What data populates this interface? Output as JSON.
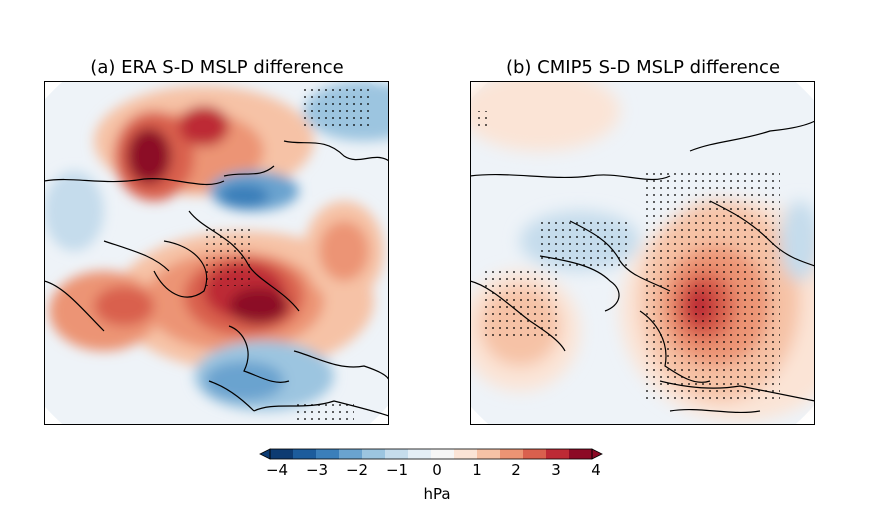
{
  "panels": [
    {
      "id": "a",
      "title": "(a) ERA S-D MSLP difference"
    },
    {
      "id": "b",
      "title": "(b) CMIP5 S-D MSLP difference"
    }
  ],
  "colorbar": {
    "ticks": [
      "−4",
      "−3",
      "−2",
      "−1",
      "0",
      "1",
      "2",
      "3",
      "4"
    ],
    "unit": "hPa",
    "colors": [
      "#0d3b72",
      "#1c5c9c",
      "#3b7fba",
      "#6aa3cf",
      "#9cc5e0",
      "#c5dcec",
      "#e4eef6",
      "#f6f6f6",
      "#fbe4d6",
      "#f6c2a6",
      "#ec9474",
      "#d9604e",
      "#bd2a35",
      "#8c0a25"
    ]
  },
  "chart_data": [
    {
      "type": "heatmap",
      "title": "(a) ERA S-D MSLP difference",
      "colorbar_range": [
        -4,
        4
      ],
      "unit": "hPa",
      "stippling": "significance"
    },
    {
      "type": "heatmap",
      "title": "(b) CMIP5 S-D MSLP difference",
      "colorbar_range": [
        -4,
        4
      ],
      "unit": "hPa",
      "stippling": "significance"
    }
  ]
}
